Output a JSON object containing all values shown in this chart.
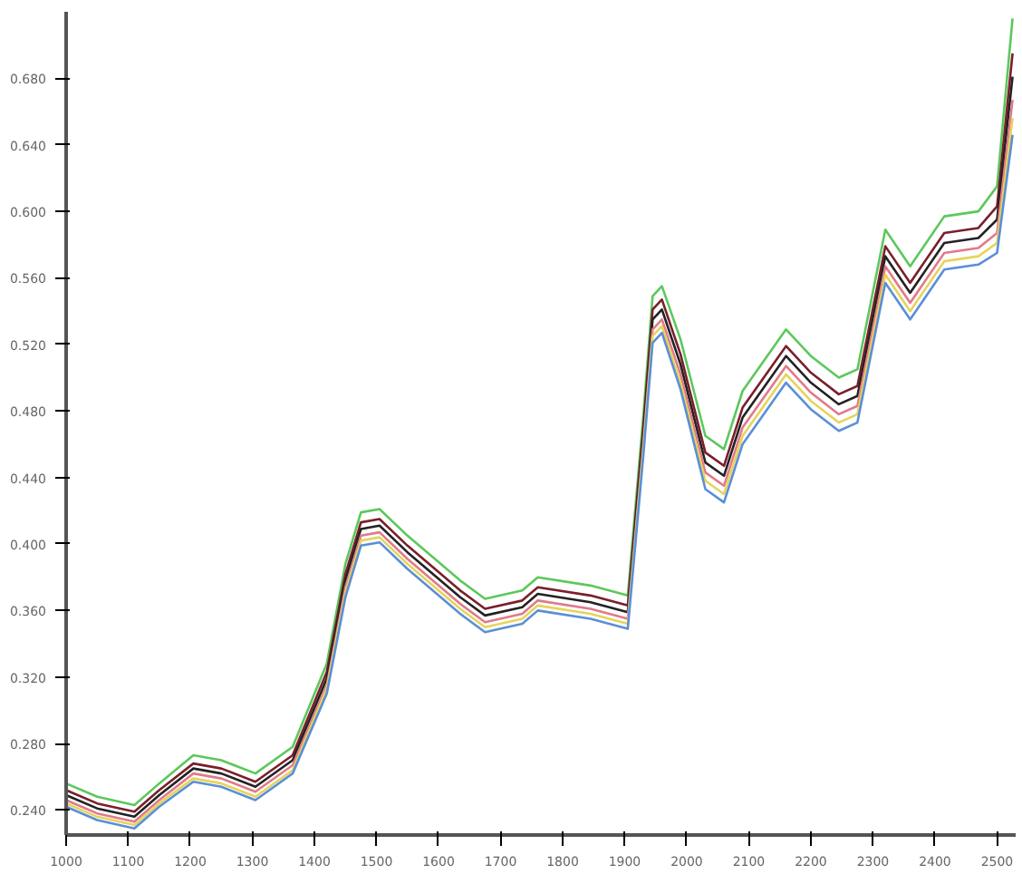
{
  "chart_data": {
    "type": "line",
    "x": [
      1000,
      1050,
      1110,
      1150,
      1205,
      1250,
      1305,
      1365,
      1420,
      1450,
      1475,
      1505,
      1550,
      1635,
      1675,
      1735,
      1760,
      1845,
      1905,
      1930,
      1945,
      1960,
      1990,
      2030,
      2060,
      2090,
      2160,
      2200,
      2245,
      2275,
      2320,
      2360,
      2415,
      2470,
      2500,
      2525
    ],
    "series": [
      {
        "color": "#5cc85c",
        "values": [
          0.256,
          0.248,
          0.243,
          0.256,
          0.273,
          0.27,
          0.262,
          0.278,
          0.328,
          0.388,
          0.419,
          0.421,
          0.405,
          0.378,
          0.367,
          0.372,
          0.38,
          0.375,
          0.369,
          0.477,
          0.549,
          0.555,
          0.523,
          0.465,
          0.457,
          0.492,
          0.529,
          0.513,
          0.5,
          0.505,
          0.589,
          0.567,
          0.597,
          0.6,
          0.615,
          0.716
        ]
      },
      {
        "color": "#7a1f2b",
        "values": [
          0.252,
          0.244,
          0.239,
          0.252,
          0.268,
          0.265,
          0.257,
          0.273,
          0.323,
          0.382,
          0.413,
          0.415,
          0.399,
          0.372,
          0.361,
          0.366,
          0.374,
          0.369,
          0.363,
          0.47,
          0.541,
          0.547,
          0.514,
          0.455,
          0.447,
          0.482,
          0.519,
          0.503,
          0.49,
          0.495,
          0.579,
          0.557,
          0.587,
          0.59,
          0.603,
          0.695
        ]
      },
      {
        "color": "#222222",
        "values": [
          0.249,
          0.241,
          0.236,
          0.249,
          0.265,
          0.262,
          0.254,
          0.27,
          0.319,
          0.378,
          0.409,
          0.411,
          0.395,
          0.368,
          0.357,
          0.362,
          0.37,
          0.365,
          0.359,
          0.465,
          0.535,
          0.541,
          0.508,
          0.449,
          0.441,
          0.476,
          0.513,
          0.497,
          0.484,
          0.489,
          0.573,
          0.551,
          0.581,
          0.584,
          0.595,
          0.681
        ]
      },
      {
        "color": "#e07a8a",
        "values": [
          0.246,
          0.238,
          0.233,
          0.246,
          0.262,
          0.259,
          0.251,
          0.267,
          0.315,
          0.374,
          0.405,
          0.407,
          0.391,
          0.364,
          0.353,
          0.358,
          0.366,
          0.361,
          0.355,
          0.46,
          0.529,
          0.535,
          0.502,
          0.443,
          0.435,
          0.47,
          0.507,
          0.491,
          0.478,
          0.483,
          0.567,
          0.545,
          0.575,
          0.578,
          0.587,
          0.667
        ]
      },
      {
        "color": "#e6d45a",
        "values": [
          0.244,
          0.236,
          0.231,
          0.244,
          0.259,
          0.256,
          0.248,
          0.264,
          0.313,
          0.371,
          0.402,
          0.404,
          0.388,
          0.361,
          0.35,
          0.355,
          0.363,
          0.358,
          0.352,
          0.457,
          0.525,
          0.531,
          0.497,
          0.438,
          0.43,
          0.465,
          0.502,
          0.486,
          0.473,
          0.478,
          0.562,
          0.54,
          0.57,
          0.573,
          0.581,
          0.656
        ]
      },
      {
        "color": "#5a8fd8",
        "values": [
          0.242,
          0.234,
          0.229,
          0.242,
          0.257,
          0.254,
          0.246,
          0.262,
          0.31,
          0.368,
          0.399,
          0.401,
          0.385,
          0.358,
          0.347,
          0.352,
          0.36,
          0.355,
          0.349,
          0.453,
          0.521,
          0.527,
          0.493,
          0.433,
          0.425,
          0.46,
          0.497,
          0.481,
          0.468,
          0.473,
          0.557,
          0.535,
          0.565,
          0.568,
          0.575,
          0.646
        ]
      }
    ],
    "xlim": [
      1000,
      2530
    ],
    "ylim": [
      0.225,
      0.72
    ],
    "xticks": [
      1000,
      1100,
      1200,
      1300,
      1400,
      1500,
      1600,
      1700,
      1800,
      1900,
      2000,
      2100,
      2200,
      2300,
      2400,
      2500
    ],
    "yticks": [
      {
        "value": 0.24,
        "label": "0.240"
      },
      {
        "value": 0.28,
        "label": "0.280"
      },
      {
        "value": 0.32,
        "label": "0.320"
      },
      {
        "value": 0.36,
        "label": "0.360"
      },
      {
        "value": 0.4,
        "label": "0.400"
      },
      {
        "value": 0.44,
        "label": "0.440"
      },
      {
        "value": 0.48,
        "label": "0.480"
      },
      {
        "value": 0.52,
        "label": "0.520"
      },
      {
        "value": 0.56,
        "label": "0.560"
      },
      {
        "value": 0.6,
        "label": "0.600"
      },
      {
        "value": 0.64,
        "label": "0.640"
      },
      {
        "value": 0.68,
        "label": "0.680"
      }
    ],
    "grid": false,
    "marker": "none",
    "line_style": "solid"
  }
}
